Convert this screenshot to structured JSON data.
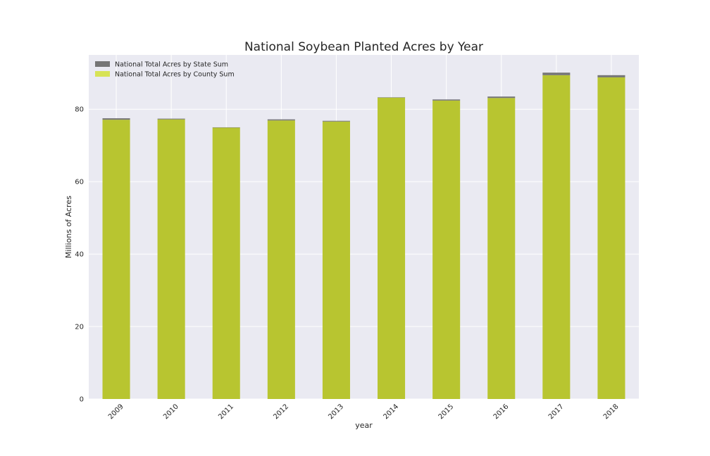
{
  "chart_data": {
    "type": "bar",
    "stacked": true,
    "title": "National Soybean Planted Acres by Year",
    "xlabel": "year",
    "ylabel": "Millions of Acres",
    "ylim": [
      0,
      95
    ],
    "yticks": [
      0,
      20,
      40,
      60,
      80
    ],
    "grid": true,
    "legend_position": "top-left",
    "categories": [
      "2009",
      "2010",
      "2011",
      "2012",
      "2013",
      "2014",
      "2015",
      "2016",
      "2017",
      "2018"
    ],
    "series": [
      {
        "name": "National Total Acres by County Sum",
        "color": "#B8C530",
        "legend_color": "#D7E356",
        "values": [
          77.1,
          77.2,
          74.9,
          76.9,
          76.6,
          83.2,
          82.4,
          83.1,
          89.4,
          88.8
        ]
      },
      {
        "name": "National Total Acres by State Sum",
        "color": "#767676",
        "legend_color": "#767676",
        "values": [
          0.4,
          0.2,
          0.1,
          0.3,
          0.2,
          0.1,
          0.3,
          0.4,
          0.7,
          0.6
        ]
      }
    ],
    "legend_order": [
      1,
      0
    ]
  }
}
